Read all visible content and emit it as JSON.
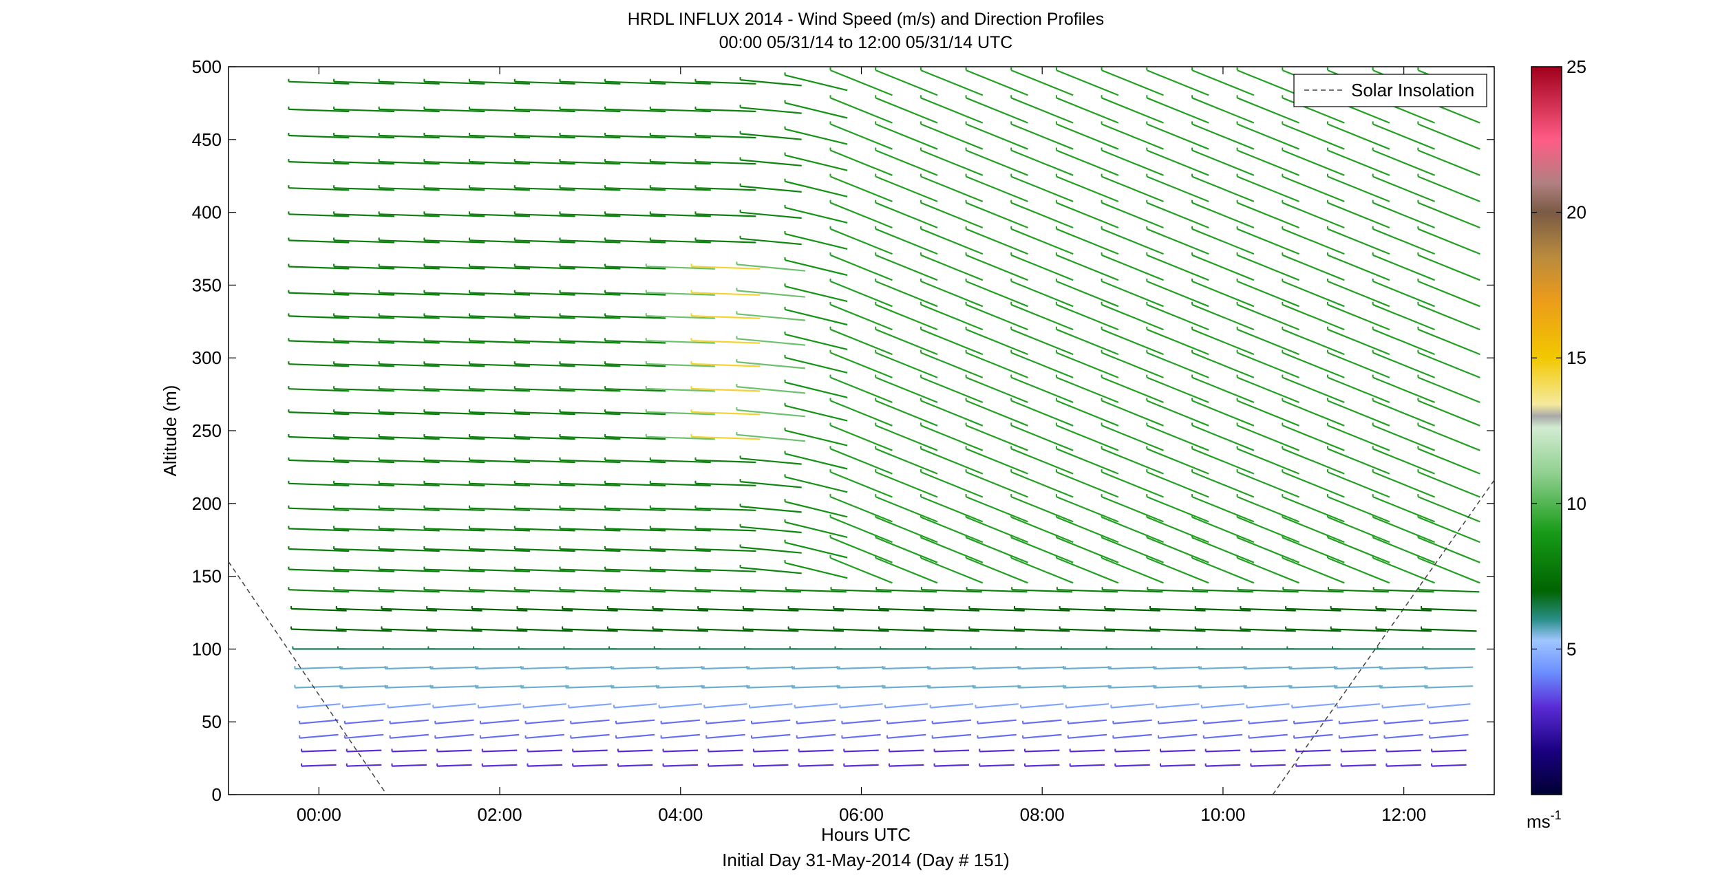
{
  "chart_data": {
    "type": "wind_barb_profile",
    "title": "HRDL INFLUX 2014 - Wind Speed (m/s) and Direction Profiles",
    "subtitle": "00:00 05/31/14 to 12:00 05/31/14  UTC",
    "xlabel": "Hours UTC",
    "x_sublabel": "Initial Day 31-May-2014 (Day # 151)",
    "ylabel": "Altitude (m)",
    "xlim": [
      -1.0,
      13.0
    ],
    "ylim": [
      0,
      500
    ],
    "x_ticks": [
      0,
      2,
      4,
      6,
      8,
      10,
      12
    ],
    "x_tick_labels": [
      "00:00",
      "02:00",
      "04:00",
      "06:00",
      "08:00",
      "10:00",
      "12:00"
    ],
    "y_ticks": [
      0,
      50,
      100,
      150,
      200,
      250,
      300,
      350,
      400,
      450,
      500
    ],
    "y_tick_labels": [
      "0",
      "50",
      "100",
      "150",
      "200",
      "250",
      "300",
      "350",
      "400",
      "450",
      "500"
    ],
    "legend": {
      "label": "Solar Insolation",
      "position": "top-right",
      "style": "dashed"
    },
    "colorbar": {
      "range": [
        0,
        25
      ],
      "tick_values": [
        5,
        10,
        15,
        20,
        25
      ],
      "tick_labels": [
        "5",
        "10",
        "15",
        "20",
        "25"
      ],
      "unit_label": "ms",
      "unit_exp": "-1",
      "stops": [
        {
          "v": 0.0,
          "c": "#000033"
        },
        {
          "v": 1.5,
          "c": "#1a0080"
        },
        {
          "v": 3.0,
          "c": "#5a2bd6"
        },
        {
          "v": 4.2,
          "c": "#6b8fff"
        },
        {
          "v": 5.3,
          "c": "#9fc6ff"
        },
        {
          "v": 6.0,
          "c": "#2b8f8a"
        },
        {
          "v": 7.0,
          "c": "#006400"
        },
        {
          "v": 9.0,
          "c": "#179b17"
        },
        {
          "v": 11.0,
          "c": "#8ecf8e"
        },
        {
          "v": 12.6,
          "c": "#d2ecd2"
        },
        {
          "v": 13.0,
          "c": "#a8a8a8"
        },
        {
          "v": 13.4,
          "c": "#f5ea9e"
        },
        {
          "v": 15.0,
          "c": "#f2c800"
        },
        {
          "v": 17.0,
          "c": "#eb9b1a"
        },
        {
          "v": 18.5,
          "c": "#b88a3e"
        },
        {
          "v": 20.0,
          "c": "#7a5a44"
        },
        {
          "v": 21.0,
          "c": "#b08080"
        },
        {
          "v": 22.5,
          "c": "#ff5c85"
        },
        {
          "v": 25.0,
          "c": "#a0001a"
        }
      ]
    },
    "solar_insolation": [
      {
        "x": [
          -1.0,
          0.75
        ],
        "y": [
          160,
          0
        ]
      },
      {
        "x": [
          10.55,
          13.0
        ],
        "y": [
          0,
          216
        ]
      }
    ],
    "profile_times": [
      0,
      0.5,
      1,
      1.5,
      2,
      2.5,
      3,
      3.5,
      4,
      4.5,
      5,
      5.5,
      6,
      6.5,
      7,
      7.5,
      8,
      8.5,
      9,
      9.5,
      10,
      10.5,
      11,
      11.5,
      12,
      12.5
    ],
    "altitudes": [
      20,
      30,
      40,
      50,
      61,
      74,
      87,
      100,
      113,
      127,
      140,
      154,
      168,
      182,
      196,
      213,
      229,
      245,
      262,
      278,
      295,
      311,
      328,
      344,
      362,
      380,
      398,
      416,
      434,
      452,
      470,
      489
    ],
    "profile_layers": [
      {
        "alt_max": 30,
        "speed": 3.0,
        "dir": 268
      },
      {
        "alt_max": 55,
        "speed": 3.8,
        "dir": 265
      },
      {
        "alt_max": 65,
        "speed": 4.6,
        "dir": 265
      },
      {
        "alt_max": 90,
        "speed": 5.6,
        "dir": 268
      },
      {
        "alt_max": 110,
        "speed": 6.4,
        "dir": 270
      },
      {
        "alt_max": 130,
        "speed": 7.0,
        "dir": 272
      },
      {
        "alt_max": 500,
        "speed": 8.0,
        "dir": 272
      }
    ],
    "notes": "Each barb is one measured wind vector at the given time and altitude; barb color is wind speed on the colorbar scale. Lower levels are blue/purple (~2-5 m/s), middle and upper levels green (~7-10 m/s), with peak speeds ~13-15 m/s (pale yellow/grey) near 04:00-05:00 between 230-370 m. After ~05:00 upper-level barbs rotate to a WNW-ESE orientation."
  }
}
